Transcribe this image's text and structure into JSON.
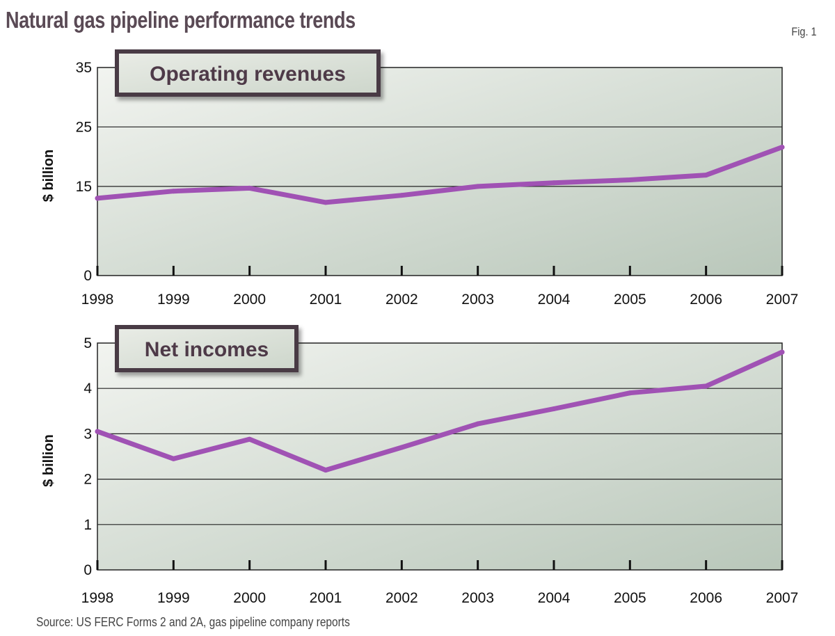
{
  "title": "Natural gas pipeline performance trends",
  "figure_label": "Fig. 1",
  "source": "Source: US FERC Forms 2 and 2A, gas pipeline company reports",
  "colors": {
    "line": "#a052b4",
    "badge_border": "#4a3a44",
    "badge_text": "#4e3a48",
    "plot_bg_light": "#eef1ec",
    "plot_bg_dark": "#bccabd",
    "title": "#5a4a55"
  },
  "chart_data": [
    {
      "type": "line",
      "title": "Operating revenues",
      "ylabel": "$ billion",
      "xlabel": "",
      "ylim": [
        0,
        35
      ],
      "y_ticks": [
        "0",
        "15",
        "25",
        "35"
      ],
      "x": [
        "1998",
        "1999",
        "2000",
        "2001",
        "2002",
        "2003",
        "2004",
        "2005",
        "2006",
        "2007"
      ],
      "series": [
        {
          "values": [
            13.0,
            14.2,
            14.7,
            12.3,
            13.5,
            15.0,
            15.6,
            16.1,
            16.9,
            21.6
          ]
        }
      ],
      "grid": true
    },
    {
      "type": "line",
      "title": "Net incomes",
      "ylabel": "$ billion",
      "xlabel": "",
      "ylim": [
        0,
        5
      ],
      "y_ticks": [
        "0",
        "1",
        "2",
        "3",
        "4",
        "5"
      ],
      "x": [
        "1998",
        "1999",
        "2000",
        "2001",
        "2002",
        "2003",
        "2004",
        "2005",
        "2006",
        "2007"
      ],
      "series": [
        {
          "values": [
            3.05,
            2.45,
            2.88,
            2.2,
            2.7,
            3.22,
            3.55,
            3.9,
            4.05,
            4.8
          ]
        }
      ],
      "grid": true
    }
  ]
}
